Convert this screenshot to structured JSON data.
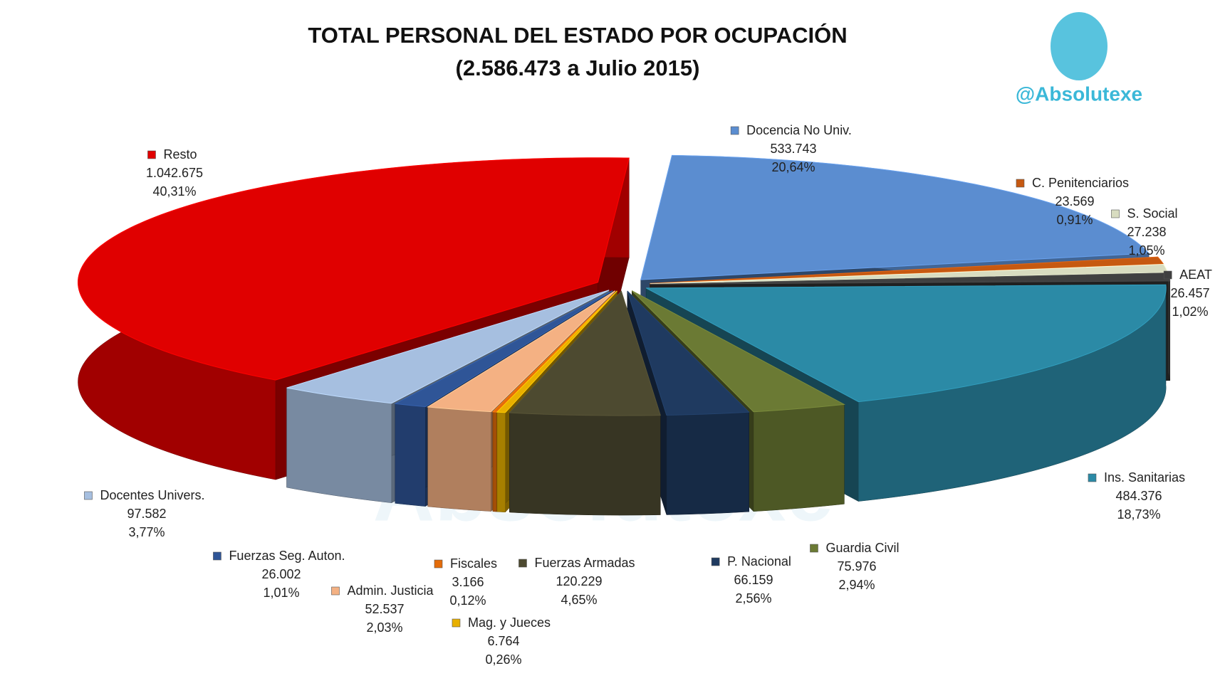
{
  "chart_data": {
    "type": "pie3d",
    "title": "TOTAL PERSONAL DEL ESTADO POR OCUPACIÓN",
    "subtitle": "(2.586.473 a Julio 2015)",
    "brand": "@Absolutexe",
    "watermark": "Absolutexe",
    "categories": [
      "Docencia No Univ.",
      "C. Penitenciarios",
      "S. Social",
      "AEAT",
      "Ins. Sanitarias",
      "Guardia Civil",
      "P. Nacional",
      "Fuerzas Armadas",
      "Mag. y Jueces",
      "Fiscales",
      "Admin. Justicia",
      "Fuerzas Seg. Auton.",
      "Docentes Univers.",
      "Resto"
    ],
    "values": [
      533743,
      23569,
      27238,
      26457,
      484376,
      75976,
      66159,
      120229,
      6764,
      3166,
      52537,
      26002,
      97582,
      1042675
    ],
    "value_labels": [
      "533.743",
      "23.569",
      "27.238",
      "26.457",
      "484.376",
      "75.976",
      "66.159",
      "120.229",
      "6.764",
      "3.166",
      "52.537",
      "26.002",
      "97.582",
      "1.042.675"
    ],
    "percents": [
      20.64,
      0.91,
      1.05,
      1.02,
      18.73,
      2.94,
      2.56,
      4.65,
      0.26,
      0.12,
      2.03,
      1.01,
      3.77,
      40.31
    ],
    "percent_labels": [
      "20,64%",
      "0,91%",
      "1,05%",
      "1,02%",
      "18,73%",
      "2,94%",
      "2,56%",
      "4,65%",
      "0,26%",
      "0,12%",
      "2,03%",
      "1,01%",
      "3,77%",
      "40,31%"
    ],
    "colors": [
      "#5b8dd0",
      "#c65911",
      "#d8dcc0",
      "#404040",
      "#2b8aa6",
      "#6b7a34",
      "#1f3a60",
      "#4d4a30",
      "#e8b000",
      "#e46c0a",
      "#f4b183",
      "#2f5597",
      "#a6bfe0",
      "#e00000"
    ]
  }
}
